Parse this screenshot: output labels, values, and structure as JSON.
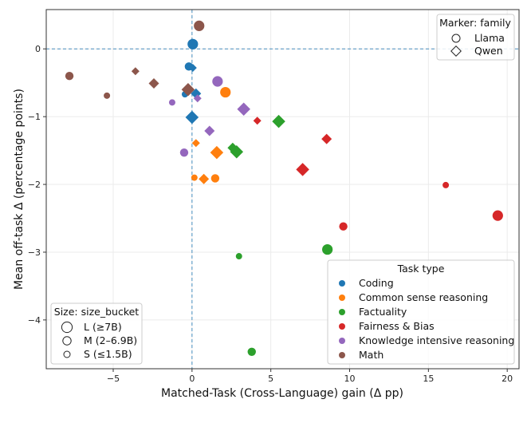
{
  "chart_data": {
    "type": "scatter",
    "xlabel": "Matched-Task (Cross-Language) gain (Δ pp)",
    "ylabel": "Mean off-task Δ (percentage points)",
    "xlim": [
      -9.25,
      20.75
    ],
    "ylim": [
      -4.72,
      0.58
    ],
    "xticks": [
      -5,
      0,
      5,
      10,
      15,
      20
    ],
    "xtick_labels": [
      "−5",
      "0",
      "5",
      "10",
      "15",
      "20"
    ],
    "yticks": [
      0,
      -1,
      -2,
      -3,
      -4
    ],
    "ytick_labels": [
      "0",
      "−1",
      "−2",
      "−3",
      "−4"
    ],
    "grid": true,
    "reference_lines": {
      "x": 0,
      "y": 0,
      "style": "dashed",
      "color": "#1f77b4"
    },
    "colors": {
      "Coding": "#1f77b4",
      "Common sense reasoning": "#ff7f0e",
      "Factuality": "#2ca02c",
      "Fairness & Bias": "#d62728",
      "Knowledge intensive reasoning": "#9467bd",
      "Math": "#8c564b"
    },
    "legends": {
      "marker": {
        "title": "Marker: family",
        "entries": [
          {
            "label": "Llama",
            "marker": "circle"
          },
          {
            "label": "Qwen",
            "marker": "diamond"
          }
        ],
        "placement": "top-right"
      },
      "size": {
        "title": "Size: size_bucket",
        "entries": [
          {
            "label": "L (≥7B)",
            "size": "L"
          },
          {
            "label": "M (2–6.9B)",
            "size": "M"
          },
          {
            "label": "S (≤1.5B)",
            "size": "S"
          }
        ],
        "placement": "bottom-left"
      },
      "color": {
        "title": "Task type",
        "entries": [
          "Coding",
          "Common sense reasoning",
          "Factuality",
          "Fairness & Bias",
          "Knowledge intensive reasoning",
          "Math"
        ],
        "placement": "bottom-right"
      }
    },
    "points": [
      {
        "task": "Math",
        "family": "Llama",
        "size": "L",
        "x": 0.45,
        "y": 0.34
      },
      {
        "task": "Coding",
        "family": "Llama",
        "size": "L",
        "x": 0.05,
        "y": 0.07
      },
      {
        "task": "Coding",
        "family": "Llama",
        "size": "M",
        "x": -0.2,
        "y": -0.26
      },
      {
        "task": "Coding",
        "family": "Qwen",
        "size": "S",
        "x": 0.05,
        "y": -0.28
      },
      {
        "task": "Math",
        "family": "Llama",
        "size": "M",
        "x": -7.78,
        "y": -0.4
      },
      {
        "task": "Math",
        "family": "Qwen",
        "size": "S",
        "x": -3.59,
        "y": -0.33
      },
      {
        "task": "Math",
        "family": "Qwen",
        "size": "M",
        "x": -2.42,
        "y": -0.51
      },
      {
        "task": "Math",
        "family": "Llama",
        "size": "S",
        "x": -5.4,
        "y": -0.69
      },
      {
        "task": "Coding",
        "family": "Llama",
        "size": "S",
        "x": -0.45,
        "y": -0.67
      },
      {
        "task": "Coding",
        "family": "Qwen",
        "size": "M",
        "x": 0.25,
        "y": -0.66
      },
      {
        "task": "Math",
        "family": "Qwen",
        "size": "L",
        "x": -0.25,
        "y": -0.6
      },
      {
        "task": "Knowledge intensive reasoning",
        "family": "Qwen",
        "size": "S",
        "x": 0.35,
        "y": -0.73
      },
      {
        "task": "Knowledge intensive reasoning",
        "family": "Llama",
        "size": "S",
        "x": -1.26,
        "y": -0.79
      },
      {
        "task": "Knowledge intensive reasoning",
        "family": "Llama",
        "size": "L",
        "x": 1.62,
        "y": -0.48
      },
      {
        "task": "Common sense reasoning",
        "family": "Llama",
        "size": "L",
        "x": 2.12,
        "y": -0.64
      },
      {
        "task": "Knowledge intensive reasoning",
        "family": "Qwen",
        "size": "L",
        "x": 3.28,
        "y": -0.89
      },
      {
        "task": "Fairness & Bias",
        "family": "Qwen",
        "size": "S",
        "x": 4.14,
        "y": -1.06
      },
      {
        "task": "Factuality",
        "family": "Qwen",
        "size": "L",
        "x": 5.5,
        "y": -1.07
      },
      {
        "task": "Coding",
        "family": "Qwen",
        "size": "L",
        "x": 0.0,
        "y": -1.01
      },
      {
        "task": "Knowledge intensive reasoning",
        "family": "Qwen",
        "size": "M",
        "x": 1.11,
        "y": -1.21
      },
      {
        "task": "Common sense reasoning",
        "family": "Qwen",
        "size": "S",
        "x": 0.25,
        "y": -1.39
      },
      {
        "task": "Knowledge intensive reasoning",
        "family": "Llama",
        "size": "M",
        "x": -0.5,
        "y": -1.53
      },
      {
        "task": "Common sense reasoning",
        "family": "Qwen",
        "size": "L",
        "x": 1.57,
        "y": -1.53
      },
      {
        "task": "Factuality",
        "family": "Qwen",
        "size": "M",
        "x": 2.58,
        "y": -1.46
      },
      {
        "task": "Factuality",
        "family": "Qwen",
        "size": "L",
        "x": 2.83,
        "y": -1.52
      },
      {
        "task": "Common sense reasoning",
        "family": "Llama",
        "size": "S",
        "x": 0.15,
        "y": -1.9
      },
      {
        "task": "Common sense reasoning",
        "family": "Qwen",
        "size": "M",
        "x": 0.75,
        "y": -1.92
      },
      {
        "task": "Common sense reasoning",
        "family": "Llama",
        "size": "M",
        "x": 1.47,
        "y": -1.91
      },
      {
        "task": "Fairness & Bias",
        "family": "Qwen",
        "size": "M",
        "x": 8.54,
        "y": -1.33
      },
      {
        "task": "Fairness & Bias",
        "family": "Qwen",
        "size": "L",
        "x": 7.02,
        "y": -1.78
      },
      {
        "task": "Fairness & Bias",
        "family": "Llama",
        "size": "S",
        "x": 16.1,
        "y": -2.01
      },
      {
        "task": "Fairness & Bias",
        "family": "Llama",
        "size": "L",
        "x": 19.4,
        "y": -2.46
      },
      {
        "task": "Fairness & Bias",
        "family": "Llama",
        "size": "M",
        "x": 9.6,
        "y": -2.62
      },
      {
        "task": "Factuality",
        "family": "Llama",
        "size": "L",
        "x": 8.59,
        "y": -2.96
      },
      {
        "task": "Factuality",
        "family": "Llama",
        "size": "S",
        "x": 2.98,
        "y": -3.06
      },
      {
        "task": "Factuality",
        "family": "Llama",
        "size": "M",
        "x": 3.79,
        "y": -4.47
      }
    ]
  }
}
